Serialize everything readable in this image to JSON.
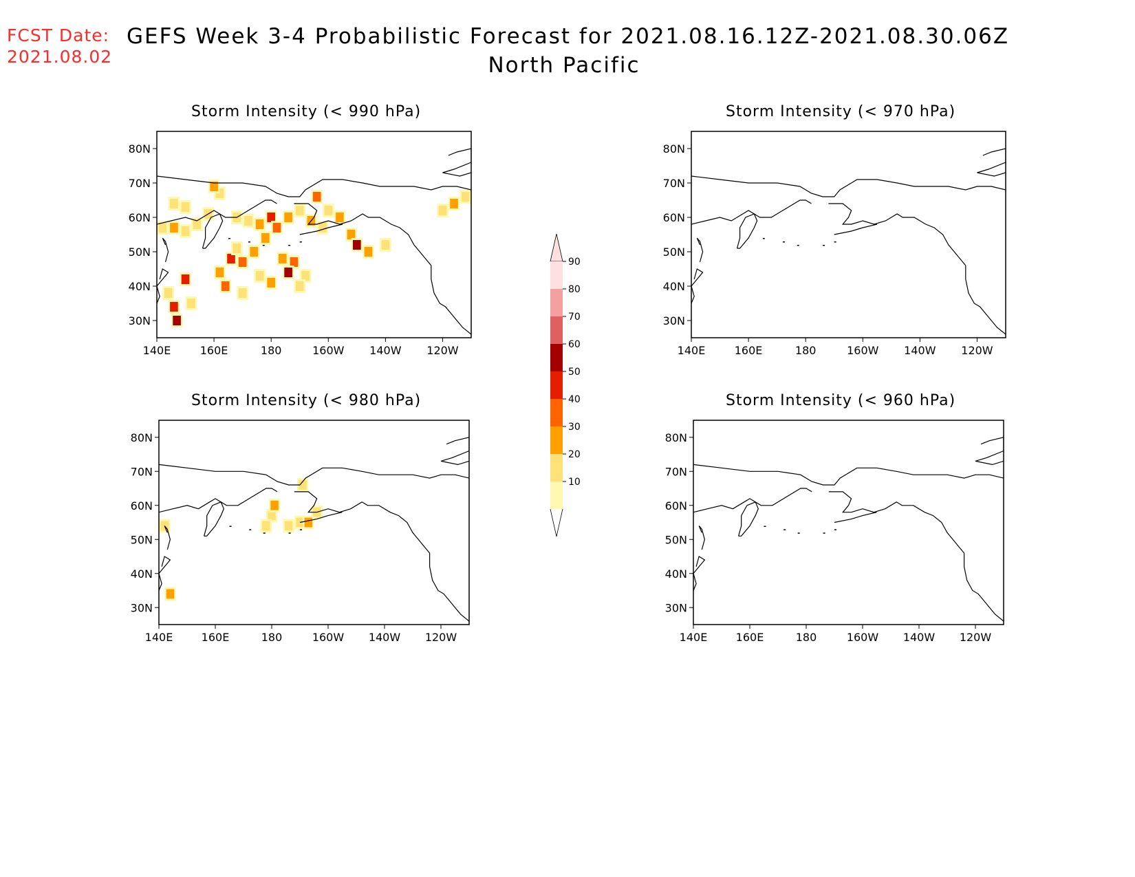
{
  "header": {
    "fcst_label": "FCST Date:",
    "fcst_date": "2021.08.02",
    "title": "GEFS Week 3-4 Probabilistic Forecast for 2021.08.16.12Z-2021.08.30.06Z",
    "subtitle": "North Pacific"
  },
  "colors": {
    "fcst": "#ff2a2a",
    "scale": [
      "#fff8b0",
      "#ffe277",
      "#ffa000",
      "#ff6400",
      "#e61e00",
      "#a50000",
      "#e06060",
      "#f5a0a0",
      "#ffe0e0"
    ]
  },
  "chart_data": [
    {
      "type": "heatmap",
      "title": "Storm Intensity (< 990 hPa)",
      "x_ticks": [
        "140E",
        "160E",
        "180",
        "160W",
        "140W",
        "120W"
      ],
      "y_ticks": [
        "80N",
        "70N",
        "60N",
        "50N",
        "40N",
        "30N"
      ],
      "cells": [
        [
          142,
          57,
          1
        ],
        [
          146,
          57,
          2
        ],
        [
          150,
          56,
          1
        ],
        [
          154,
          58,
          1
        ],
        [
          158,
          61,
          1
        ],
        [
          162,
          67,
          1
        ],
        [
          146,
          64,
          1
        ],
        [
          150,
          63,
          1
        ],
        [
          160,
          69,
          2
        ],
        [
          168,
          60,
          1
        ],
        [
          172,
          59,
          1
        ],
        [
          176,
          58,
          2
        ],
        [
          180,
          60,
          4
        ],
        [
          182,
          57,
          3
        ],
        [
          186,
          60,
          2
        ],
        [
          190,
          62,
          1
        ],
        [
          194,
          59,
          2
        ],
        [
          198,
          57,
          1
        ],
        [
          178,
          54,
          2
        ],
        [
          174,
          50,
          2
        ],
        [
          170,
          47,
          3
        ],
        [
          166,
          48,
          4
        ],
        [
          168,
          51,
          1
        ],
        [
          184,
          48,
          2
        ],
        [
          188,
          47,
          3
        ],
        [
          186,
          44,
          5
        ],
        [
          192,
          43,
          1
        ],
        [
          190,
          40,
          1
        ],
        [
          180,
          41,
          2
        ],
        [
          176,
          43,
          1
        ],
        [
          162,
          44,
          2
        ],
        [
          164,
          40,
          3
        ],
        [
          170,
          38,
          1
        ],
        [
          150,
          42,
          4
        ],
        [
          146,
          34,
          4
        ],
        [
          147,
          30,
          5
        ],
        [
          144,
          38,
          1
        ],
        [
          152,
          35,
          1
        ],
        [
          196,
          66,
          3
        ],
        [
          200,
          62,
          1
        ],
        [
          204,
          60,
          2
        ],
        [
          208,
          55,
          2
        ],
        [
          210,
          52,
          5
        ],
        [
          214,
          50,
          2
        ],
        [
          220,
          52,
          1
        ],
        [
          244,
          64,
          2
        ],
        [
          248,
          66,
          1
        ],
        [
          252,
          60,
          1
        ],
        [
          255,
          58,
          4
        ],
        [
          258,
          56,
          6
        ],
        [
          256,
          66,
          1
        ],
        [
          240,
          62,
          1
        ]
      ]
    },
    {
      "type": "heatmap",
      "title": "Storm Intensity (< 970 hPa)",
      "x_ticks": [
        "140E",
        "160E",
        "180",
        "160W",
        "140W",
        "120W"
      ],
      "y_ticks": [
        "80N",
        "70N",
        "60N",
        "50N",
        "40N",
        "30N"
      ],
      "cells": []
    },
    {
      "type": "heatmap",
      "title": "Storm Intensity (< 980 hPa)",
      "x_ticks": [
        "140E",
        "160E",
        "180",
        "160W",
        "140W",
        "120W"
      ],
      "y_ticks": [
        "80N",
        "70N",
        "60N",
        "50N",
        "40N",
        "30N"
      ],
      "cells": [
        [
          180,
          57,
          1
        ],
        [
          178,
          54,
          1
        ],
        [
          181,
          60,
          2
        ],
        [
          191,
          66,
          1
        ],
        [
          196,
          58,
          1
        ],
        [
          190,
          55,
          1
        ],
        [
          193,
          55,
          2
        ],
        [
          186,
          54,
          1
        ],
        [
          144,
          34,
          2
        ],
        [
          142,
          54,
          1
        ]
      ]
    },
    {
      "type": "heatmap",
      "title": "Storm Intensity (< 960 hPa)",
      "x_ticks": [
        "140E",
        "160E",
        "180",
        "160W",
        "140W",
        "120W"
      ],
      "y_ticks": [
        "80N",
        "70N",
        "60N",
        "50N",
        "40N",
        "30N"
      ],
      "cells": []
    }
  ],
  "colorbar": {
    "labels": [
      "90",
      "80",
      "70",
      "60",
      "50",
      "40",
      "30",
      "20",
      "10"
    ]
  }
}
